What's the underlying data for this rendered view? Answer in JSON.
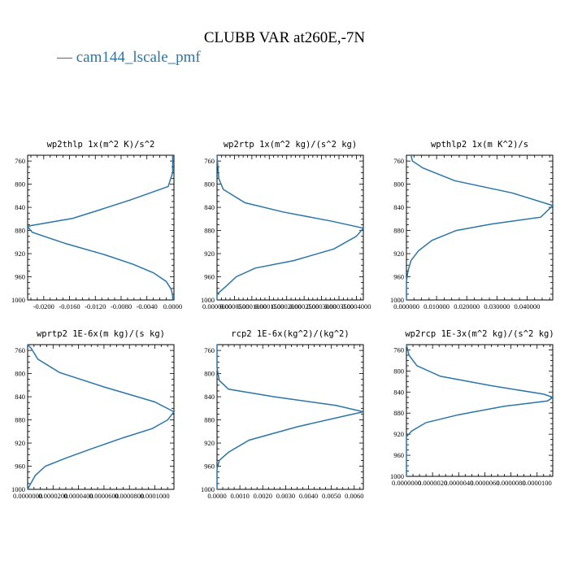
{
  "title": "CLUBB VAR at260E,-7N",
  "legend": {
    "dash": "—",
    "label": "cam144_lscale_pmf",
    "color": "#2a76a8"
  },
  "chart_data": [
    {
      "type": "line",
      "title": "wp2thlp   1x(m^2 K)/s^2",
      "xlim": [
        -0.0225,
        0.0002
      ],
      "ylim": [
        1000,
        750
      ],
      "xticks": [
        -0.02,
        -0.016,
        -0.012,
        -0.008,
        -0.004,
        0.0
      ],
      "xtick_labels": [
        "-0.0200",
        "-0.0160",
        "-0.0120",
        "-0.0080",
        "-0.0040",
        "0.0000"
      ],
      "yticks": [
        1000,
        960,
        920,
        880,
        840,
        800,
        760
      ],
      "series": [
        {
          "x": [
            0.0,
            0.0,
            -0.0007,
            -0.0065,
            -0.0115,
            -0.0155,
            -0.0218,
            -0.0225,
            -0.0218,
            -0.0165,
            -0.0105,
            -0.0062,
            -0.003,
            -0.001,
            -0.0002,
            0.0,
            0.0
          ],
          "y": [
            750,
            780,
            804,
            827,
            845,
            859,
            871,
            873,
            883,
            903,
            922,
            938,
            953,
            968,
            982,
            993,
            1000
          ]
        }
      ]
    },
    {
      "type": "line",
      "title": "wp2rtp   1x(m^2 kg)/(s^2 kg)",
      "xlim": [
        0,
        0.00042
      ],
      "ylim": [
        1000,
        750
      ],
      "xticks": [
        0,
        5e-05,
        0.0001,
        0.00015,
        0.0002,
        0.00025,
        0.0003,
        0.00035,
        0.0004
      ],
      "xtick_labels": [
        "0.0000000",
        "0.0000500",
        "0.0001000",
        "0.0001500",
        "0.0002000",
        "0.0002500",
        "0.0003000",
        "0.0003500",
        "0.0004000"
      ],
      "yticks": [
        1000,
        960,
        920,
        880,
        840,
        800,
        760
      ],
      "series": [
        {
          "x": [
            0.0,
            5e-06,
            1.8e-05,
            8e-05,
            0.00019,
            0.00033,
            0.00042,
            0.0004,
            0.000335,
            0.00022,
            0.00011,
            5.5e-05,
            2.5e-05,
            0.0,
            0.0
          ],
          "y": [
            750,
            790,
            809,
            832,
            848,
            864,
            876,
            890,
            912,
            932,
            945,
            960,
            977,
            990,
            1000
          ]
        }
      ]
    },
    {
      "type": "line",
      "title": "wpthlp2   1x(m K^2)/s",
      "xlim": [
        0,
        0.0485
      ],
      "ylim": [
        1000,
        750
      ],
      "xticks": [
        0,
        0.01,
        0.02,
        0.03,
        0.04
      ],
      "xtick_labels": [
        "0.000000",
        "0.010000",
        "0.020000",
        "0.030000",
        "0.040000"
      ],
      "yticks": [
        1000,
        960,
        920,
        880,
        840,
        800,
        760
      ],
      "series": [
        {
          "x": [
            0.0015,
            0.002,
            0.0055,
            0.016,
            0.035,
            0.0485,
            0.0445,
            0.028,
            0.0165,
            0.0085,
            0.004,
            0.0015,
            0.0005,
            0.0,
            0.0
          ],
          "y": [
            750,
            760,
            772,
            794,
            815,
            837,
            857,
            869,
            880,
            897,
            915,
            932,
            950,
            968,
            1000
          ]
        }
      ]
    },
    {
      "type": "line",
      "title": "wprtp2   1E-6x(m kg)/(s kg)",
      "xlim": [
        0,
        0.000115
      ],
      "ylim": [
        1000,
        750
      ],
      "xticks": [
        0,
        2e-05,
        4e-05,
        6e-05,
        8e-05,
        0.0001
      ],
      "xtick_labels": [
        "0.0000000",
        "0.0000200",
        "0.0000400",
        "0.0000600",
        "0.0000800",
        "0.0001000"
      ],
      "yticks": [
        1000,
        960,
        920,
        880,
        840,
        800,
        760
      ],
      "series": [
        {
          "x": [
            0.0,
            3e-06,
            8e-06,
            2.5e-05,
            6e-05,
            0.0001,
            0.000115,
            0.00011,
            9.8e-05,
            7.5e-05,
            5e-05,
            3e-05,
            1.4e-05,
            6e-06,
            2e-06,
            0.0
          ],
          "y": [
            750,
            757,
            775,
            798,
            823,
            849,
            866,
            880,
            895,
            911,
            930,
            946,
            960,
            976,
            992,
            1000
          ]
        }
      ]
    },
    {
      "type": "line",
      "title": "rcp2   1E-6x(kg^2)/(kg^2)",
      "xlim": [
        0,
        0.0064
      ],
      "ylim": [
        1000,
        750
      ],
      "xticks": [
        0,
        0.001,
        0.002,
        0.003,
        0.004,
        0.005,
        0.006
      ],
      "xtick_labels": [
        "0.0000",
        "0.0010",
        "0.0020",
        "0.0030",
        "0.0040",
        "0.0050",
        "0.0060"
      ],
      "yticks": [
        1000,
        960,
        920,
        880,
        840,
        800,
        760
      ],
      "series": [
        {
          "x": [
            0.0,
            0.0,
            0.0001,
            0.0005,
            0.0025,
            0.0052,
            0.0064,
            0.0056,
            0.0035,
            0.0014,
            0.0005,
            0.0001,
            0.0,
            0.0
          ],
          "y": [
            750,
            790,
            812,
            827,
            840,
            855,
            866,
            873,
            892,
            915,
            936,
            950,
            965,
            1000
          ]
        }
      ]
    },
    {
      "type": "line",
      "title": "wp2rcp   1E-3x(m^2 kg)/(s^2 kg)",
      "xlim": [
        0,
        1.12e-05
      ],
      "ylim": [
        1000,
        750
      ],
      "xticks": [
        0,
        2e-06,
        4e-06,
        6e-06,
        8e-06,
        1e-05
      ],
      "xtick_labels": [
        "0.0000000",
        "0.0000020",
        "0.0000040",
        "0.0000060",
        "0.0000080",
        "0.0000100"
      ],
      "yticks": [
        1000,
        960,
        920,
        880,
        840,
        800,
        760
      ],
      "series": [
        {
          "x": [
            0.0,
            2e-07,
            8e-07,
            2.6e-06,
            6.5e-06,
            1.05e-05,
            1.12e-05,
            1.08e-05,
            7.5e-06,
            4e-06,
            1.5e-06,
            4e-07,
            0.0,
            0.0
          ],
          "y": [
            750,
            770,
            790,
            810,
            828,
            844,
            850,
            857,
            867,
            883,
            898,
            914,
            925,
            1000
          ]
        }
      ]
    }
  ]
}
